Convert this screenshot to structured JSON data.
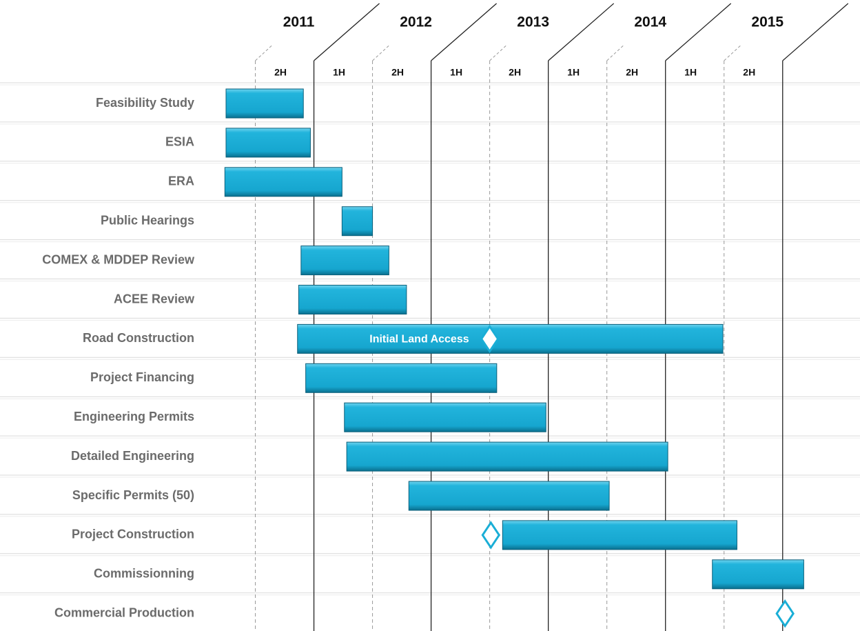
{
  "chart_data": {
    "type": "gantt",
    "years": [
      "2011",
      "2012",
      "2013",
      "2014",
      "2015"
    ],
    "halves": [
      "2H",
      "1H",
      "2H",
      "1H",
      "2H",
      "1H",
      "2H",
      "1H",
      "2H"
    ],
    "xlim": [
      2010.25,
      2015.66
    ],
    "xticks": [
      2010.5,
      2011,
      2011.5,
      2012,
      2012.5,
      2013,
      2013.5,
      2014,
      2014.5,
      2015
    ],
    "color": "#1aaed6",
    "tasks": [
      {
        "name": "Feasibility Study",
        "start": 2010.25,
        "end": 2010.91
      },
      {
        "name": "ESIA",
        "start": 2010.25,
        "end": 2010.97
      },
      {
        "name": "ERA",
        "start": 2010.24,
        "end": 2011.24
      },
      {
        "name": "Public Hearings",
        "start": 2011.24,
        "end": 2011.5
      },
      {
        "name": "COMEX & MDDEP Review",
        "start": 2010.89,
        "end": 2011.64
      },
      {
        "name": "ACEE Review",
        "start": 2010.87,
        "end": 2011.79
      },
      {
        "name": "Road Construction",
        "start": 2010.86,
        "end": 2014.49,
        "milestone": 2012.5,
        "milestone_label": "Initial Land Access"
      },
      {
        "name": "Project Financing",
        "start": 2010.93,
        "end": 2012.56
      },
      {
        "name": "Engineering Permits",
        "start": 2011.26,
        "end": 2012.98
      },
      {
        "name": "Detailed Engineering",
        "start": 2011.28,
        "end": 2014.02
      },
      {
        "name": "Specific Permits (50)",
        "start": 2011.81,
        "end": 2013.52
      },
      {
        "name": "Project Construction",
        "start": 2012.61,
        "end": 2014.61,
        "milestone": 2012.51
      },
      {
        "name": "Commissionning",
        "start": 2014.4,
        "end": 2015.18
      },
      {
        "name": "Commercial Production",
        "milestone": 2015.02
      }
    ]
  }
}
